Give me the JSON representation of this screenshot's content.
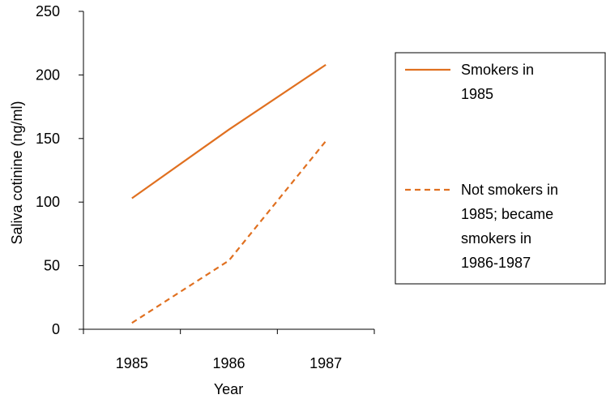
{
  "chart_data": {
    "type": "line",
    "title": "",
    "xlabel": "Year",
    "ylabel": "Saliva cotinine (ng/ml)",
    "ylim": [
      0,
      250
    ],
    "yticks": [
      "0",
      "50",
      "100",
      "150",
      "200",
      "250"
    ],
    "categories": [
      "1985",
      "1986",
      "1987"
    ],
    "grid": false,
    "legend_position": "right",
    "series": [
      {
        "name": "Smokers in 1985",
        "legend_lines": [
          "Smokers in",
          "1985"
        ],
        "values": [
          103,
          157,
          208
        ],
        "style": "solid",
        "color": "#E07020"
      },
      {
        "name": "Not smokers in 1985; became smokers in 1986-1987",
        "legend_lines": [
          "Not smokers in",
          "1985; became",
          "smokers in",
          "1986-1987"
        ],
        "values": [
          5,
          54,
          148
        ],
        "style": "dashed",
        "color": "#E07020"
      }
    ]
  }
}
